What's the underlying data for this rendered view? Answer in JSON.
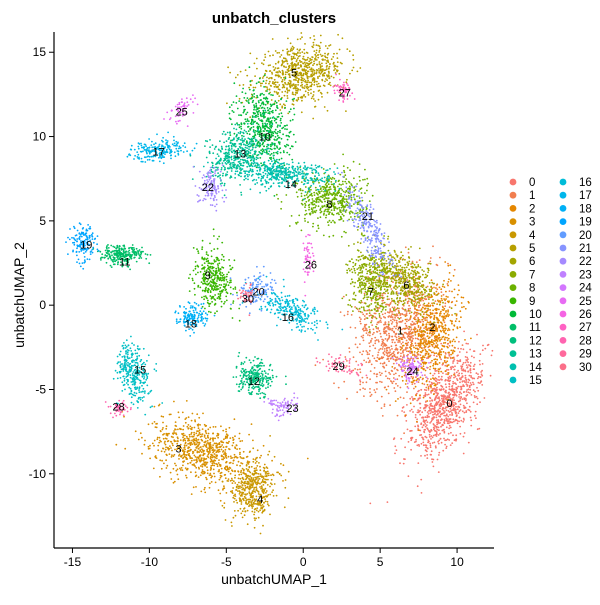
{
  "chart_data": {
    "type": "scatter",
    "title": "unbatch_clusters",
    "xlabel": "unbatchUMAP_1",
    "ylabel": "unbatchUMAP_2",
    "xlim": [
      -16.2,
      12.4
    ],
    "ylim": [
      -14.4,
      16.2
    ],
    "xticks": [
      -15,
      -10,
      -5,
      0,
      5,
      10
    ],
    "yticks": [
      -10,
      -5,
      0,
      5,
      10,
      15
    ],
    "grid": false,
    "legend_position": "right",
    "legend": [
      {
        "label": "0",
        "color": "#F8766D"
      },
      {
        "label": "1",
        "color": "#F17E4F"
      },
      {
        "label": "2",
        "color": "#E58700"
      },
      {
        "label": "3",
        "color": "#D89000"
      },
      {
        "label": "4",
        "color": "#C99800"
      },
      {
        "label": "5",
        "color": "#B79F00"
      },
      {
        "label": "6",
        "color": "#A3A500"
      },
      {
        "label": "7",
        "color": "#8BAB00"
      },
      {
        "label": "8",
        "color": "#6BB100"
      },
      {
        "label": "9",
        "color": "#39B600"
      },
      {
        "label": "10",
        "color": "#00BA38"
      },
      {
        "label": "11",
        "color": "#00BE67"
      },
      {
        "label": "12",
        "color": "#00BF7D"
      },
      {
        "label": "13",
        "color": "#00C094"
      },
      {
        "label": "14",
        "color": "#00C0AF"
      },
      {
        "label": "15",
        "color": "#00BFC4"
      },
      {
        "label": "16",
        "color": "#00BCD8"
      },
      {
        "label": "17",
        "color": "#00B6EB"
      },
      {
        "label": "18",
        "color": "#00B0F6"
      },
      {
        "label": "19",
        "color": "#00A5FF"
      },
      {
        "label": "20",
        "color": "#619CFF"
      },
      {
        "label": "21",
        "color": "#8794FF"
      },
      {
        "label": "22",
        "color": "#A58AFF"
      },
      {
        "label": "23",
        "color": "#BF80FF"
      },
      {
        "label": "24",
        "color": "#D376FF"
      },
      {
        "label": "25",
        "color": "#E76BF3"
      },
      {
        "label": "26",
        "color": "#F564E3"
      },
      {
        "label": "27",
        "color": "#FF61C3"
      },
      {
        "label": "28",
        "color": "#FF64B0"
      },
      {
        "label": "29",
        "color": "#FF699C"
      },
      {
        "label": "30",
        "color": "#FB6F89"
      }
    ],
    "clusters": [
      {
        "label": "0",
        "x": 9.2,
        "y": -5.8,
        "label_x": 9.5,
        "label_y": -5.8
      },
      {
        "label": "1",
        "x": 6.2,
        "y": -1.5,
        "label_x": 6.3,
        "label_y": -1.5
      },
      {
        "label": "2",
        "x": 8.4,
        "y": -1.8,
        "label_x": 8.4,
        "label_y": -1.3
      },
      {
        "label": "3",
        "x": -6.5,
        "y": -8.7,
        "label_x": -8.1,
        "label_y": -8.5
      },
      {
        "label": "4",
        "x": -3.2,
        "y": -11.0,
        "label_x": -2.8,
        "label_y": -11.5
      },
      {
        "label": "5",
        "x": -0.2,
        "y": 13.7,
        "label_x": -0.6,
        "label_y": 13.8
      },
      {
        "label": "6",
        "x": 6.5,
        "y": 1.5,
        "label_x": 6.7,
        "label_y": 1.2
      },
      {
        "label": "7",
        "x": 4.4,
        "y": 1.3,
        "label_x": 4.4,
        "label_y": 0.8
      },
      {
        "label": "8",
        "x": 1.8,
        "y": 6.3,
        "label_x": 1.7,
        "label_y": 6.0
      },
      {
        "label": "9",
        "x": -5.8,
        "y": 1.6,
        "label_x": -6.2,
        "label_y": 1.8
      },
      {
        "label": "10",
        "x": -2.6,
        "y": 10.7,
        "label_x": -2.5,
        "label_y": 10.0
      },
      {
        "label": "11",
        "x": -11.8,
        "y": 3.0,
        "label_x": -11.6,
        "label_y": 2.6
      },
      {
        "label": "12",
        "x": -3.2,
        "y": -4.3,
        "label_x": -3.2,
        "label_y": -4.5
      },
      {
        "label": "13",
        "x": -4.3,
        "y": 9.0,
        "label_x": -4.1,
        "label_y": 9.0
      },
      {
        "label": "14",
        "x": -1.5,
        "y": 7.8,
        "label_x": -0.8,
        "label_y": 7.2
      },
      {
        "label": "15",
        "x": -11.0,
        "y": -4.0,
        "label_x": -10.6,
        "label_y": -3.8
      },
      {
        "label": "16",
        "x": -0.7,
        "y": -0.4,
        "label_x": -1.0,
        "label_y": -0.7
      },
      {
        "label": "17",
        "x": -9.4,
        "y": 9.2,
        "label_x": -9.4,
        "label_y": 9.1
      },
      {
        "label": "18",
        "x": -7.2,
        "y": -0.7,
        "label_x": -7.3,
        "label_y": -1.1
      },
      {
        "label": "19",
        "x": -14.3,
        "y": 3.7,
        "label_x": -14.1,
        "label_y": 3.6
      },
      {
        "label": "20",
        "x": -3.0,
        "y": 0.9,
        "label_x": -2.9,
        "label_y": 0.8
      },
      {
        "label": "21",
        "x": 4.3,
        "y": 4.5,
        "label_x": 4.2,
        "label_y": 5.3
      },
      {
        "label": "22",
        "x": -6.0,
        "y": 7.0,
        "label_x": -6.2,
        "label_y": 7.0
      },
      {
        "label": "23",
        "x": -1.3,
        "y": -6.0,
        "label_x": -0.7,
        "label_y": -6.1
      },
      {
        "label": "24",
        "x": 7.0,
        "y": -3.7,
        "label_x": 7.1,
        "label_y": -3.9
      },
      {
        "label": "25",
        "x": -7.9,
        "y": 11.5,
        "label_x": -7.9,
        "label_y": 11.5
      },
      {
        "label": "26",
        "x": 0.3,
        "y": 2.8,
        "label_x": 0.5,
        "label_y": 2.4
      },
      {
        "label": "27",
        "x": 2.6,
        "y": 12.8,
        "label_x": 2.7,
        "label_y": 12.6
      },
      {
        "label": "28",
        "x": -11.9,
        "y": -6.1,
        "label_x": -12.0,
        "label_y": -6.0
      },
      {
        "label": "29",
        "x": 2.5,
        "y": -3.6,
        "label_x": 2.3,
        "label_y": -3.6
      },
      {
        "label": "30",
        "x": -3.6,
        "y": 0.6,
        "label_x": -3.6,
        "label_y": 0.4
      }
    ]
  }
}
